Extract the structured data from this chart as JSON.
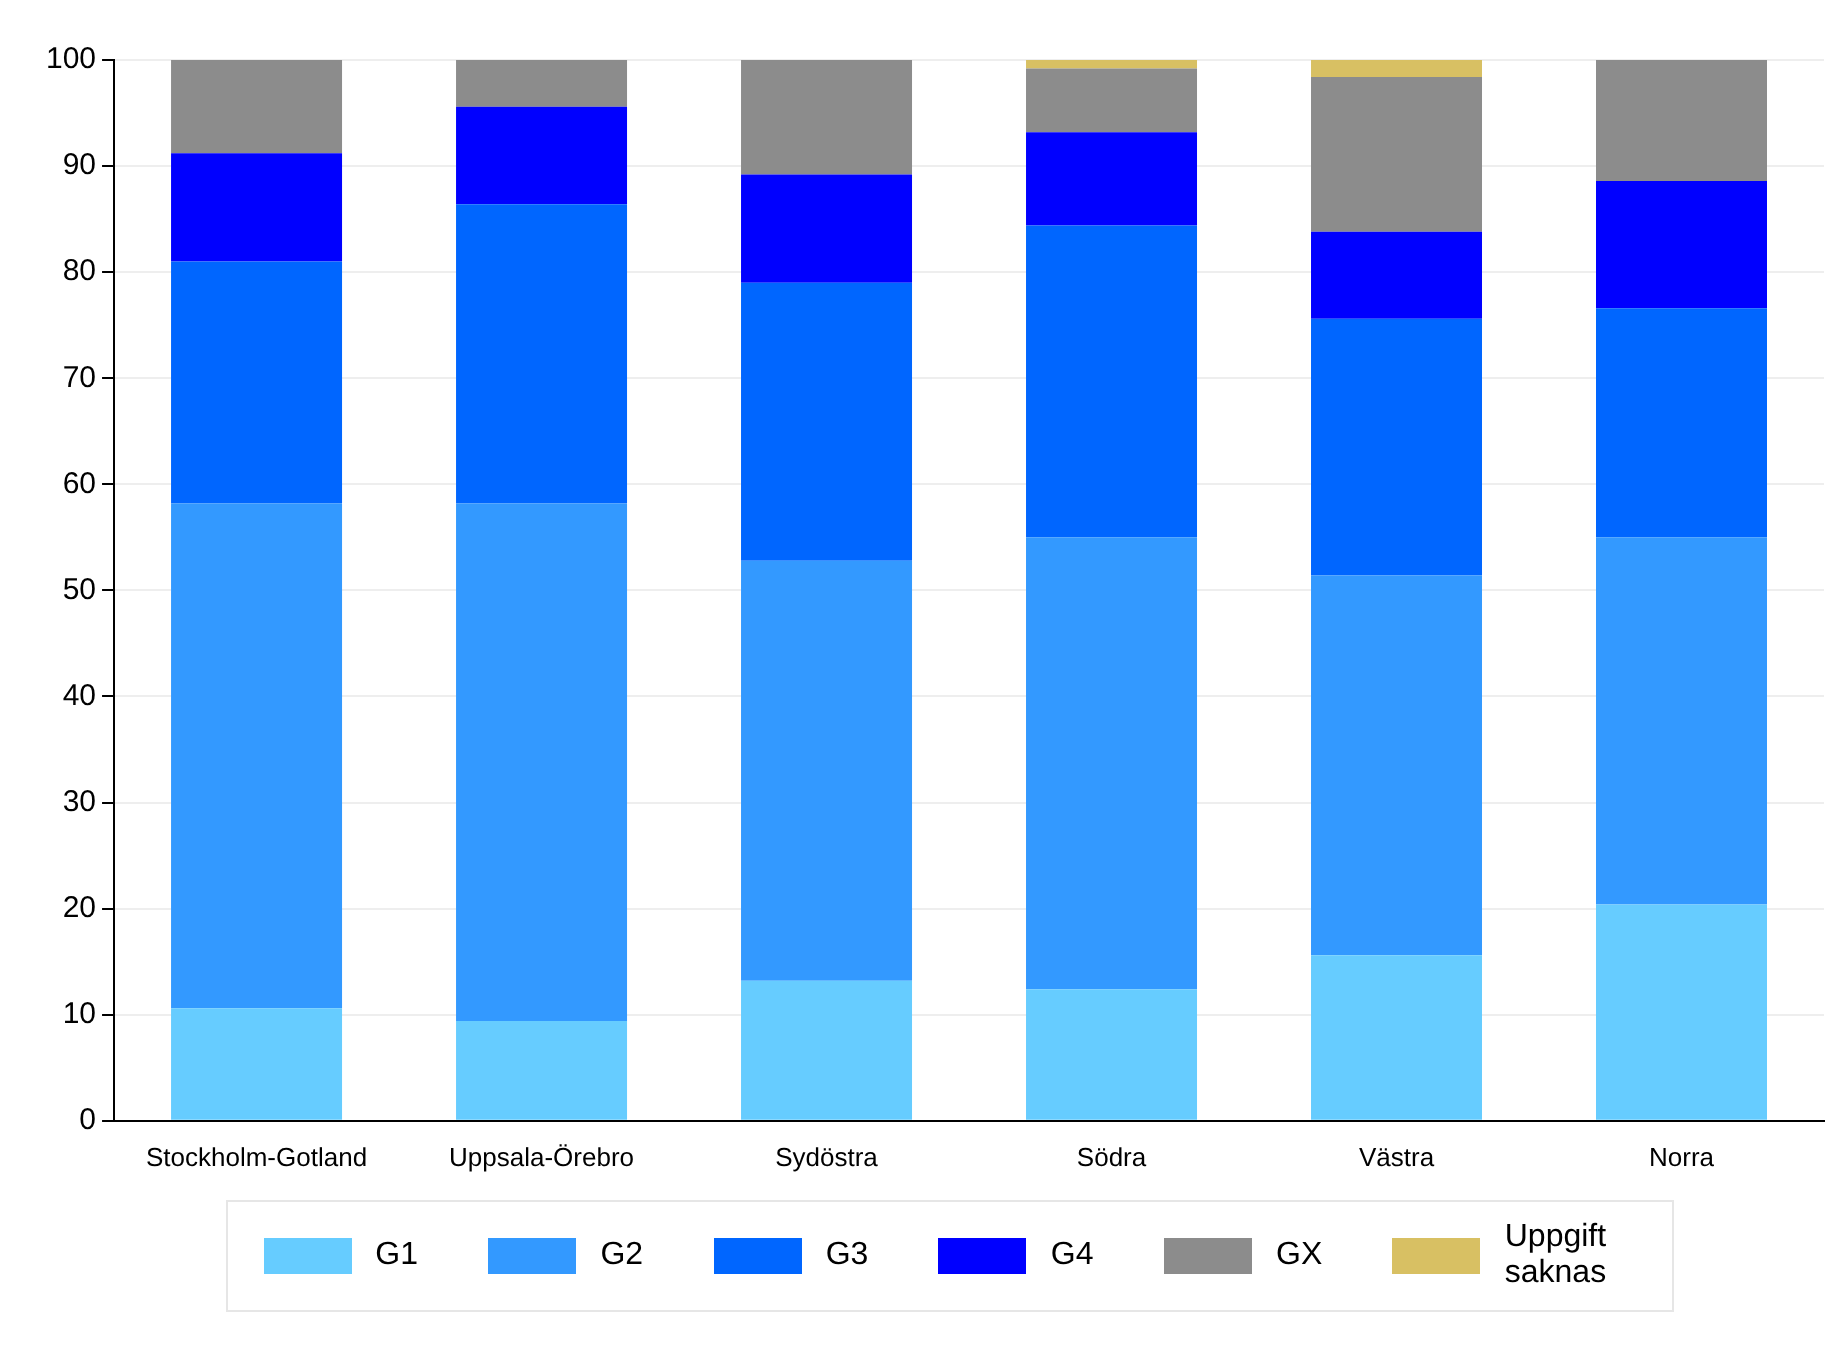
{
  "chart_data": {
    "type": "bar",
    "stacked": true,
    "categories": [
      "Stockholm-Gotland",
      "Uppsala-Örebro",
      "Sydöstra",
      "Södra",
      "Västra",
      "Norra"
    ],
    "series": [
      {
        "name": "G1",
        "color": "#66ccff",
        "values": [
          10.6,
          9.4,
          13.2,
          12.4,
          15.6,
          20.4
        ]
      },
      {
        "name": "G2",
        "color": "#3399ff",
        "values": [
          47.6,
          48.8,
          39.6,
          42.6,
          35.8,
          34.6
        ]
      },
      {
        "name": "G3",
        "color": "#0066ff",
        "values": [
          22.8,
          28.2,
          26.2,
          29.4,
          24.2,
          21.6
        ]
      },
      {
        "name": "G4",
        "color": "#0000ff",
        "values": [
          10.2,
          9.2,
          10.2,
          8.8,
          8.2,
          12.0
        ]
      },
      {
        "name": "GX",
        "color": "#8c8c8c",
        "values": [
          8.8,
          4.4,
          10.8,
          6.0,
          14.6,
          11.4
        ]
      },
      {
        "name": "Uppgift saknas",
        "color": "#d8c063",
        "values": [
          0,
          0,
          0,
          0.8,
          1.6,
          0
        ]
      }
    ],
    "ylim": [
      0,
      100
    ],
    "yticks": [
      0,
      10,
      20,
      30,
      40,
      50,
      60,
      70,
      80,
      90,
      100
    ],
    "grid": "y",
    "legend": "bottom"
  }
}
